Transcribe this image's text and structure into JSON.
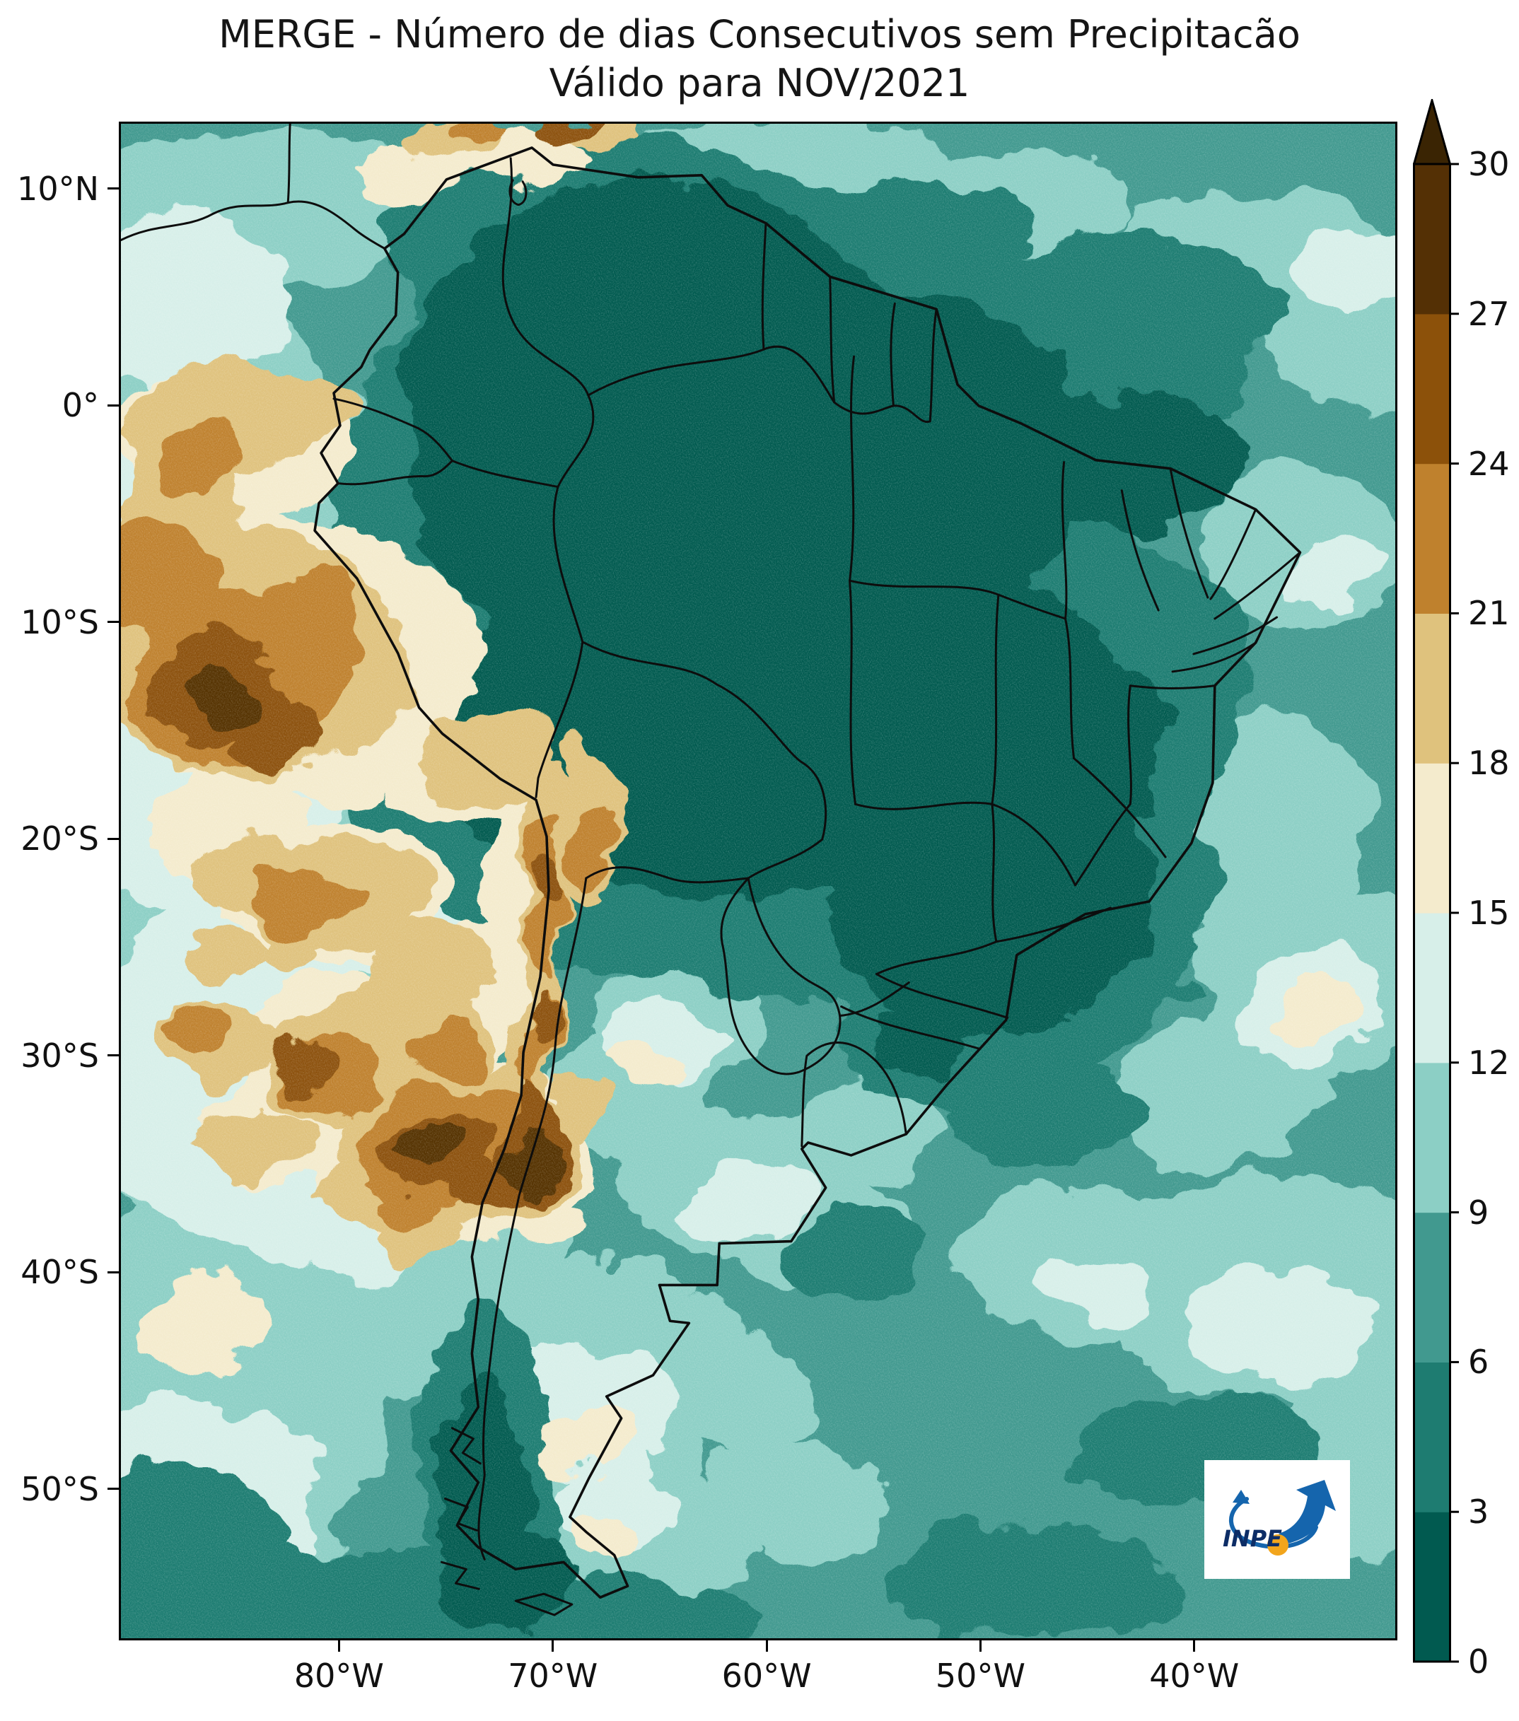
{
  "figure": {
    "title_line1": "MERGE - Número de dias Consecutivos sem Precipitacão",
    "title_line2": "Válido para NOV/2021"
  },
  "chart_data": {
    "type": "heatmap",
    "title": "MERGE - Número de dias Consecutivos sem Precipitacão",
    "subtitle": "Válido para NOV/2021",
    "product": "MERGE",
    "valid_for": "NOV/2021",
    "variable": "Número de dias consecutivos sem precipitação (dias)",
    "region": "América do Sul",
    "grid": false,
    "x_axis": {
      "tick_labels": [
        "80°W",
        "70°W",
        "60°W",
        "50°W",
        "40°W"
      ],
      "tick_values_deg_west": [
        80,
        70,
        60,
        50,
        40
      ],
      "range_deg_west": [
        90.3,
        30.5
      ]
    },
    "y_axis": {
      "tick_labels": [
        "10°N",
        "0°",
        "10°S",
        "20°S",
        "30°S",
        "40°S",
        "50°S"
      ],
      "tick_values_deg_lat": [
        10,
        0,
        -10,
        -20,
        -30,
        -40,
        -50
      ],
      "range_deg_lat": [
        13.1,
        -57
      ]
    },
    "colorbar": {
      "orientation": "vertical",
      "position": "right",
      "tick_labels": [
        "0",
        "3",
        "6",
        "9",
        "12",
        "15",
        "18",
        "21",
        "24",
        "27",
        "30"
      ],
      "tick_values": [
        0,
        3,
        6,
        9,
        12,
        15,
        18,
        21,
        24,
        27,
        30
      ],
      "bin_edges": [
        0,
        3,
        6,
        9,
        12,
        15,
        18,
        21,
        24,
        27,
        30
      ],
      "palette": [
        "#015a50",
        "#1e7c71",
        "#41998f",
        "#8ccfc5",
        "#d7efe9",
        "#f4ebcd",
        "#dfc27d",
        "#bf812d",
        "#8c510a",
        "#543005"
      ],
      "extend": "max",
      "extend_color": "#3a2403",
      "border_color": "#000000"
    }
  },
  "logo": {
    "label": "INPE",
    "arrow_color": "#1565ad",
    "ball_color": "#f2a51c",
    "text_color": "#0d2d66"
  }
}
